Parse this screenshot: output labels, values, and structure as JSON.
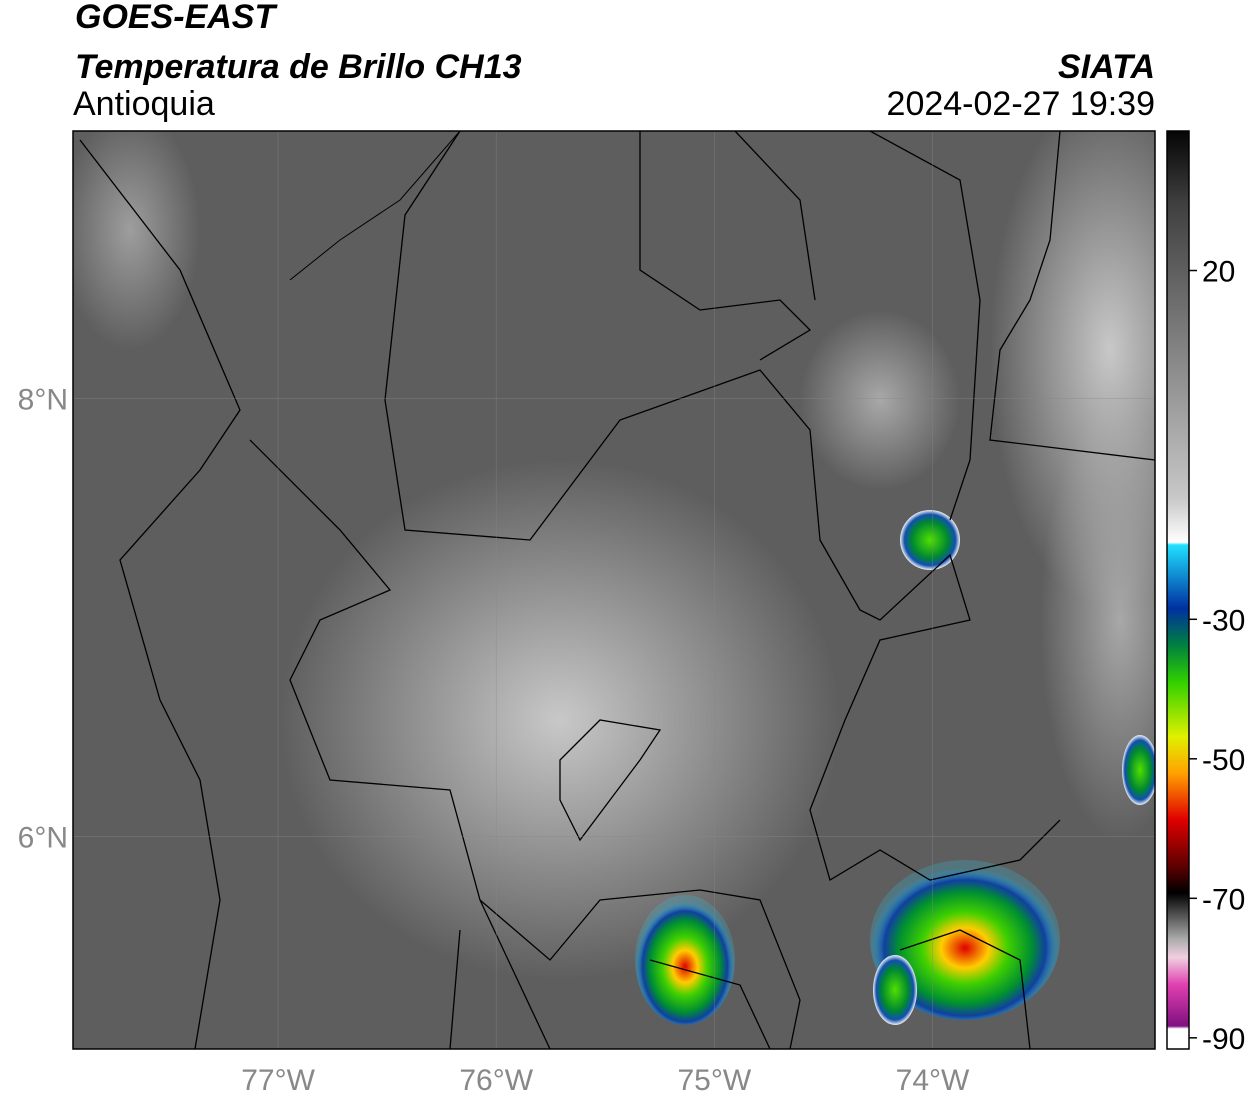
{
  "header": {
    "title": "GOES-EAST",
    "subtitle": "Temperatura de Brillo CH13",
    "region": "Antioquia",
    "source": "SIATA",
    "datetime": "2024-02-27 19:39"
  },
  "map": {
    "xlim": [
      -77.94,
      -72.98
    ],
    "ylim": [
      5.03,
      9.22
    ],
    "xticks": [
      {
        "value": -77,
        "label": "77°W"
      },
      {
        "value": -76,
        "label": "76°W"
      },
      {
        "value": -75,
        "label": "75°W"
      },
      {
        "value": -74,
        "label": "74°W"
      }
    ],
    "yticks": [
      {
        "value": 8,
        "label": "8°N"
      },
      {
        "value": 6,
        "label": "6°N"
      }
    ],
    "grid": true
  },
  "colorbar": {
    "lim": [
      -91.6,
      40
    ],
    "ticks": [
      20,
      -30,
      -50,
      -70,
      -90
    ]
  }
}
